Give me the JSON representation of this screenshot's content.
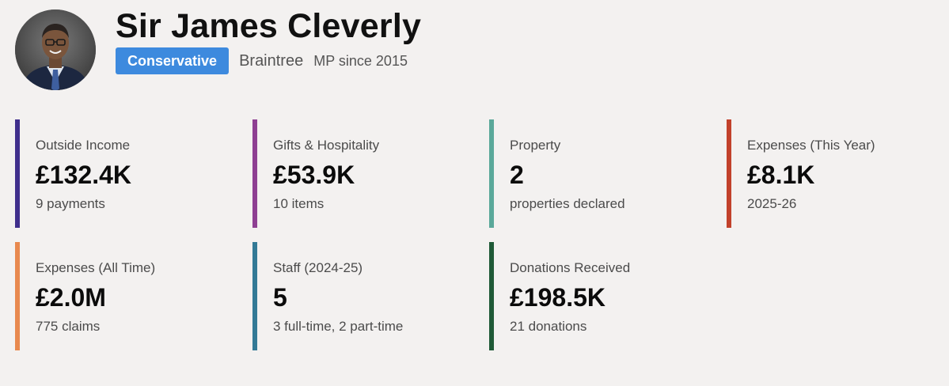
{
  "profile": {
    "name": "Sir James Cleverly",
    "party": "Conservative",
    "constituency": "Braintree",
    "mp_since": "MP since 2015",
    "party_color": "#3d8ade"
  },
  "cards": [
    {
      "label": "Outside Income",
      "value": "£132.4K",
      "sub": "9 payments",
      "color": "#3f2e8c"
    },
    {
      "label": "Gifts & Hospitality",
      "value": "£53.9K",
      "sub": "10 items",
      "color": "#8e3f92"
    },
    {
      "label": "Property",
      "value": "2",
      "sub": "properties declared",
      "color": "#5aa89a"
    },
    {
      "label": "Expenses (This Year)",
      "value": "£8.1K",
      "sub": "2025-26",
      "color": "#c2412b"
    },
    {
      "label": "Expenses (All Time)",
      "value": "£2.0M",
      "sub": "775 claims",
      "color": "#e8894e"
    },
    {
      "label": "Staff (2024-25)",
      "value": "5",
      "sub": "3 full-time, 2 part-time",
      "color": "#337a96"
    },
    {
      "label": "Donations Received",
      "value": "£198.5K",
      "sub": "21 donations",
      "color": "#1f5a37"
    }
  ]
}
